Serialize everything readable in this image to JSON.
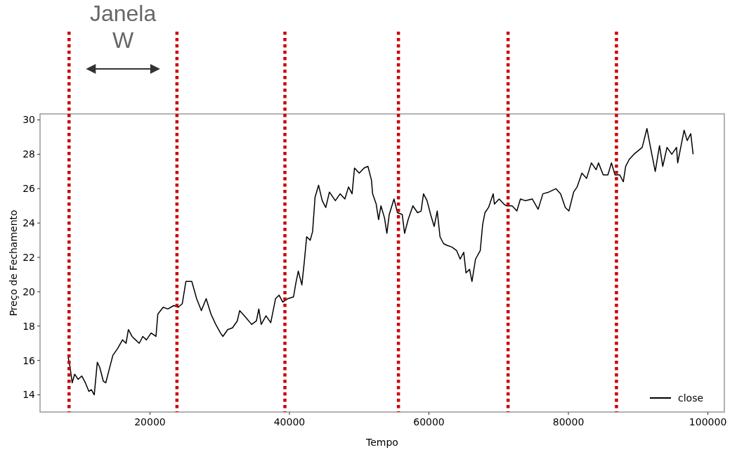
{
  "chart_data": {
    "type": "line",
    "xlabel": "Tempo",
    "ylabel": "Preço de Fechamento",
    "annotations": [
      "Janela\nW"
    ],
    "xlim": [
      4240,
      102360
    ],
    "ylim": [
      13.0,
      30.35
    ],
    "xticks": [
      20000,
      40000,
      60000,
      80000,
      100000
    ],
    "yticks": [
      14,
      16,
      18,
      20,
      22,
      24,
      26,
      28,
      30
    ],
    "grid": false,
    "legend": "bottom right",
    "line_style": "solid",
    "marker": "none",
    "ref_lines": [
      {
        "axis": "x",
        "value": 8400,
        "color": "#cc0000",
        "line_style": "dotted"
      },
      {
        "axis": "x",
        "value": 23870,
        "color": "#cc0000",
        "line_style": "dotted"
      },
      {
        "axis": "x",
        "value": 39350,
        "color": "#cc0000",
        "line_style": "dotted"
      },
      {
        "axis": "x",
        "value": 55630,
        "color": "#cc0000",
        "line_style": "dotted"
      },
      {
        "axis": "x",
        "value": 71350,
        "color": "#cc0000",
        "line_style": "dotted"
      },
      {
        "axis": "x",
        "value": 86890,
        "color": "#cc0000",
        "line_style": "dotted"
      }
    ],
    "series": [
      {
        "name": "close",
        "color": "#000000",
        "x": [
          8270,
          8510,
          8850,
          9200,
          9710,
          10220,
          10740,
          11250,
          11600,
          12010,
          12450,
          12800,
          13310,
          13660,
          14170,
          14680,
          15370,
          16060,
          16570,
          16910,
          17430,
          17940,
          18460,
          18970,
          19490,
          20170,
          20860,
          21130,
          21890,
          22570,
          23430,
          24050,
          24630,
          25150,
          26000,
          26690,
          27370,
          28060,
          28750,
          29430,
          30120,
          30460,
          31150,
          31830,
          32520,
          32860,
          33550,
          34580,
          35260,
          35610,
          35950,
          36640,
          37320,
          38010,
          38520,
          39040,
          39790,
          40580,
          40920,
          41270,
          41780,
          42120,
          42470,
          42980,
          43320,
          43670,
          44180,
          44700,
          45210,
          45730,
          46580,
          47270,
          47950,
          48470,
          48980,
          49330,
          50010,
          50700,
          51250,
          51760,
          51930,
          52440,
          52780,
          53120,
          53630,
          53970,
          54310,
          54990,
          55490,
          56170,
          56510,
          57020,
          57700,
          58370,
          58880,
          59220,
          59730,
          60240,
          60750,
          61190,
          61590,
          62100,
          62610,
          63290,
          63970,
          64480,
          64990,
          65320,
          65830,
          66170,
          66680,
          67360,
          67700,
          68030,
          68540,
          69220,
          69390,
          70070,
          70750,
          71150,
          71930,
          72610,
          73120,
          73800,
          74810,
          75660,
          76340,
          77190,
          78200,
          78880,
          79560,
          80070,
          80750,
          81250,
          81930,
          82610,
          83290,
          83970,
          84310,
          84990,
          85660,
          86170,
          86680,
          87360,
          87870,
          88210,
          88720,
          89390,
          90580,
          91260,
          91770,
          92450,
          93060,
          93530,
          94140,
          94820,
          95500,
          95670,
          96590,
          97030,
          97540,
          97880
        ],
        "values": [
          16.2,
          15.7,
          14.7,
          15.2,
          14.9,
          15.1,
          14.7,
          14.2,
          14.3,
          14.0,
          15.9,
          15.6,
          14.8,
          14.7,
          15.5,
          16.3,
          16.7,
          17.2,
          17.0,
          17.8,
          17.4,
          17.2,
          17.0,
          17.4,
          17.2,
          17.6,
          17.4,
          18.7,
          19.1,
          19.0,
          19.2,
          19.1,
          19.3,
          20.6,
          20.6,
          19.6,
          18.9,
          19.6,
          18.7,
          18.1,
          17.6,
          17.4,
          17.8,
          17.9,
          18.3,
          18.9,
          18.6,
          18.1,
          18.3,
          19.0,
          18.1,
          18.6,
          18.2,
          19.6,
          19.8,
          19.4,
          19.6,
          19.7,
          20.5,
          21.2,
          20.4,
          21.7,
          23.2,
          23.0,
          23.5,
          25.5,
          26.2,
          25.3,
          24.9,
          25.8,
          25.3,
          25.7,
          25.4,
          26.1,
          25.7,
          27.2,
          26.9,
          27.2,
          27.3,
          26.5,
          25.7,
          25.1,
          24.2,
          25.0,
          24.3,
          23.4,
          24.5,
          25.4,
          24.6,
          24.5,
          23.4,
          24.2,
          25.0,
          24.6,
          24.7,
          25.7,
          25.3,
          24.5,
          23.8,
          24.7,
          23.2,
          22.8,
          22.7,
          22.6,
          22.4,
          21.9,
          22.3,
          21.1,
          21.3,
          20.6,
          21.9,
          22.4,
          23.9,
          24.6,
          24.9,
          25.7,
          25.1,
          25.4,
          25.1,
          25.0,
          25.0,
          24.7,
          25.4,
          25.3,
          25.4,
          24.8,
          25.7,
          25.8,
          26.0,
          25.7,
          24.9,
          24.7,
          25.8,
          26.1,
          26.9,
          26.6,
          27.5,
          27.1,
          27.5,
          26.8,
          26.8,
          27.5,
          26.8,
          26.8,
          26.4,
          27.3,
          27.7,
          28.0,
          28.4,
          29.5,
          28.4,
          27.0,
          28.5,
          27.3,
          28.4,
          28.0,
          28.4,
          27.5,
          29.4,
          28.8,
          29.2,
          28.0
        ]
      }
    ]
  }
}
